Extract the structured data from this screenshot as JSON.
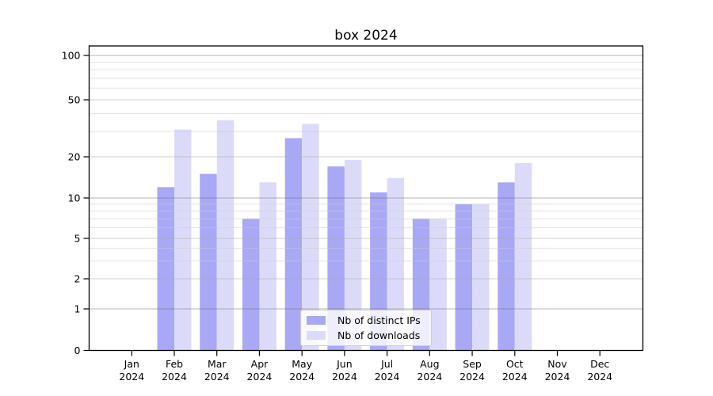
{
  "chart_data": {
    "type": "bar",
    "title": "box 2024",
    "x_categories": [
      "Jan",
      "Feb",
      "Mar",
      "Apr",
      "May",
      "Jun",
      "Jul",
      "Aug",
      "Sep",
      "Oct",
      "Nov",
      "Dec"
    ],
    "x_year_label": "2024",
    "series": [
      {
        "name": "Nb of distinct IPs",
        "color": "#a8a8f5",
        "values": [
          null,
          12,
          15,
          7,
          27,
          17,
          11,
          7,
          9,
          13,
          null,
          null
        ]
      },
      {
        "name": "Nb of downloads",
        "color": "#dbdbf9",
        "values": [
          null,
          31,
          36,
          13,
          34,
          19,
          14,
          7,
          9,
          18,
          null,
          null
        ]
      }
    ],
    "yscale": "log above 1, linear 0-1",
    "yticks": [
      0,
      1,
      2,
      5,
      10,
      20,
      50,
      100
    ],
    "minor_grid_values": [
      3,
      4,
      6,
      7,
      8,
      9,
      30,
      40,
      60,
      70,
      80,
      90
    ],
    "ylim": [
      0,
      116
    ],
    "grid": true,
    "legend_position": "lower center"
  },
  "colors": {
    "spine": "#000000",
    "grid_major": "#6e6e6e",
    "grid_submajor": "#ababab",
    "grid_minor": "#cdcdcd",
    "text": "#000000"
  }
}
